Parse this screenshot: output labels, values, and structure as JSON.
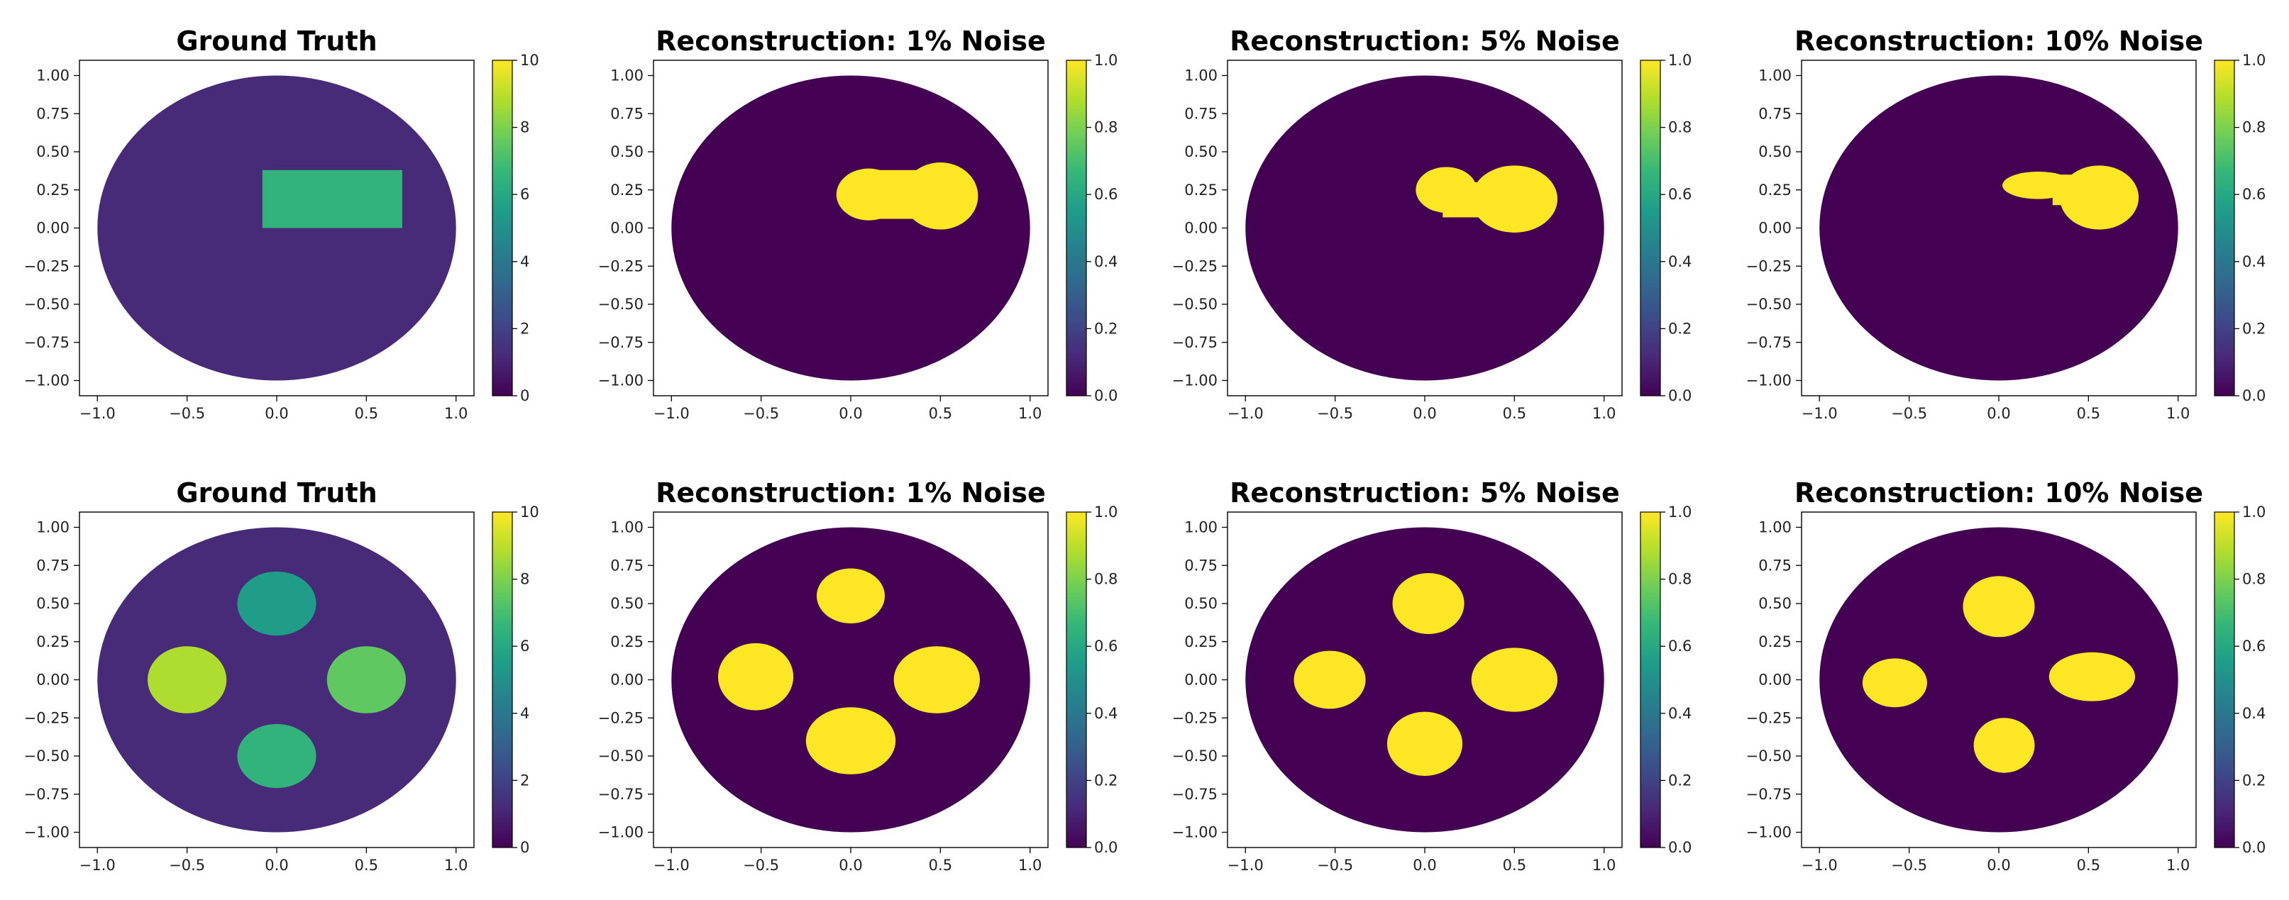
{
  "figure_title": "",
  "colors": {
    "viridis": [
      "#440154",
      "#482878",
      "#3e4989",
      "#31688e",
      "#26828e",
      "#1f9e89",
      "#35b779",
      "#6ece58",
      "#b5de2b",
      "#fde725"
    ],
    "axes_edge": "#000000",
    "background": "#ffffff"
  },
  "chart_data": [
    {
      "type": "heatmap",
      "id": "gt1",
      "title": "Ground Truth",
      "xlim": [
        -1.1,
        1.1
      ],
      "ylim": [
        -1.1,
        1.1
      ],
      "x_ticks": [
        -1.0,
        -0.5,
        0.0,
        0.5,
        1.0
      ],
      "x_tick_labels": [
        "−1.0",
        "−0.5",
        "0.0",
        "0.5",
        "1.0"
      ],
      "y_ticks": [
        1.0,
        0.75,
        0.5,
        0.25,
        0.0,
        -0.25,
        -0.5,
        -0.75,
        -1.0
      ],
      "y_tick_labels": [
        "1.00",
        "0.75",
        "0.50",
        "0.25",
        "0.00",
        "−0.25",
        "−0.50",
        "−0.75",
        "−1.00"
      ],
      "domain": {
        "shape": "disk",
        "cx": 0,
        "cy": 0,
        "r": 1.0,
        "value": 1.2
      },
      "inclusions": [
        {
          "shape": "rect",
          "x0": -0.08,
          "x1": 0.7,
          "y0": 0.0,
          "y1": 0.38,
          "value": 6.5
        }
      ],
      "colorbar": {
        "vmin": 0,
        "vmax": 10,
        "ticks": [
          0,
          2,
          4,
          6,
          8,
          10
        ],
        "tick_labels": [
          "0",
          "2",
          "4",
          "6",
          "8",
          "10"
        ]
      }
    },
    {
      "type": "heatmap",
      "id": "rec1_1",
      "title": "Reconstruction: 1% Noise",
      "xlim": [
        -1.1,
        1.1
      ],
      "ylim": [
        -1.1,
        1.1
      ],
      "x_ticks": [
        -1.0,
        -0.5,
        0.0,
        0.5,
        1.0
      ],
      "x_tick_labels": [
        "−1.0",
        "−0.5",
        "0.0",
        "0.5",
        "1.0"
      ],
      "y_ticks": [
        1.0,
        0.75,
        0.5,
        0.25,
        0.0,
        -0.25,
        -0.5,
        -0.75,
        -1.0
      ],
      "y_tick_labels": [
        "1.00",
        "0.75",
        "0.50",
        "0.25",
        "0.00",
        "−0.25",
        "−0.50",
        "−0.75",
        "−1.00"
      ],
      "domain": {
        "shape": "disk",
        "cx": 0,
        "cy": 0,
        "r": 1.0,
        "value": 0.0
      },
      "inclusions": [
        {
          "shape": "ellipse",
          "cx": 0.1,
          "cy": 0.22,
          "rx": 0.18,
          "ry": 0.17,
          "value": 1.0
        },
        {
          "shape": "ellipse",
          "cx": 0.5,
          "cy": 0.21,
          "rx": 0.21,
          "ry": 0.22,
          "value": 1.0
        },
        {
          "shape": "rect",
          "x0": 0.05,
          "x1": 0.5,
          "y0": 0.06,
          "y1": 0.38,
          "value": 1.0
        }
      ],
      "colorbar": {
        "vmin": 0,
        "vmax": 1,
        "ticks": [
          0,
          0.2,
          0.4,
          0.6,
          0.8,
          1.0
        ],
        "tick_labels": [
          "0.0",
          "0.2",
          "0.4",
          "0.6",
          "0.8",
          "1.0"
        ]
      }
    },
    {
      "type": "heatmap",
      "id": "rec1_5",
      "title": "Reconstruction: 5% Noise",
      "xlim": [
        -1.1,
        1.1
      ],
      "ylim": [
        -1.1,
        1.1
      ],
      "x_ticks": [
        -1.0,
        -0.5,
        0.0,
        0.5,
        1.0
      ],
      "x_tick_labels": [
        "−1.0",
        "−0.5",
        "0.0",
        "0.5",
        "1.0"
      ],
      "y_ticks": [
        1.0,
        0.75,
        0.5,
        0.25,
        0.0,
        -0.25,
        -0.5,
        -0.75,
        -1.0
      ],
      "y_tick_labels": [
        "1.00",
        "0.75",
        "0.50",
        "0.25",
        "0.00",
        "−0.25",
        "−0.50",
        "−0.75",
        "−1.00"
      ],
      "domain": {
        "shape": "disk",
        "cx": 0,
        "cy": 0,
        "r": 1.0,
        "value": 0.0
      },
      "inclusions": [
        {
          "shape": "ellipse",
          "cx": 0.12,
          "cy": 0.25,
          "rx": 0.17,
          "ry": 0.15,
          "value": 1.0
        },
        {
          "shape": "ellipse",
          "cx": 0.5,
          "cy": 0.19,
          "rx": 0.24,
          "ry": 0.22,
          "value": 1.0
        },
        {
          "shape": "rect",
          "x0": 0.1,
          "x1": 0.5,
          "y0": 0.07,
          "y1": 0.3,
          "value": 1.0
        }
      ],
      "colorbar": {
        "vmin": 0,
        "vmax": 1,
        "ticks": [
          0,
          0.2,
          0.4,
          0.6,
          0.8,
          1.0
        ],
        "tick_labels": [
          "0.0",
          "0.2",
          "0.4",
          "0.6",
          "0.8",
          "1.0"
        ]
      }
    },
    {
      "type": "heatmap",
      "id": "rec1_10",
      "title": "Reconstruction: 10% Noise",
      "xlim": [
        -1.1,
        1.1
      ],
      "ylim": [
        -1.1,
        1.1
      ],
      "x_ticks": [
        -1.0,
        -0.5,
        0.0,
        0.5,
        1.0
      ],
      "x_tick_labels": [
        "−1.0",
        "−0.5",
        "0.0",
        "0.5",
        "1.0"
      ],
      "y_ticks": [
        1.0,
        0.75,
        0.5,
        0.25,
        0.0,
        -0.25,
        -0.5,
        -0.75,
        -1.0
      ],
      "y_tick_labels": [
        "1.00",
        "0.75",
        "0.50",
        "0.25",
        "0.00",
        "−0.25",
        "−0.50",
        "−0.75",
        "−1.00"
      ],
      "domain": {
        "shape": "disk",
        "cx": 0,
        "cy": 0,
        "r": 1.0,
        "value": 0.0
      },
      "inclusions": [
        {
          "shape": "ellipse",
          "cx": 0.22,
          "cy": 0.28,
          "rx": 0.2,
          "ry": 0.09,
          "value": 1.0
        },
        {
          "shape": "ellipse",
          "cx": 0.56,
          "cy": 0.2,
          "rx": 0.22,
          "ry": 0.21,
          "value": 1.0
        },
        {
          "shape": "rect",
          "x0": 0.3,
          "x1": 0.56,
          "y0": 0.15,
          "y1": 0.35,
          "value": 1.0
        }
      ],
      "colorbar": {
        "vmin": 0,
        "vmax": 1,
        "ticks": [
          0,
          0.2,
          0.4,
          0.6,
          0.8,
          1.0
        ],
        "tick_labels": [
          "0.0",
          "0.2",
          "0.4",
          "0.6",
          "0.8",
          "1.0"
        ]
      }
    },
    {
      "type": "heatmap",
      "id": "gt2",
      "title": "Ground Truth",
      "xlim": [
        -1.1,
        1.1
      ],
      "ylim": [
        -1.1,
        1.1
      ],
      "x_ticks": [
        -1.0,
        -0.5,
        0.0,
        0.5,
        1.0
      ],
      "x_tick_labels": [
        "−1.0",
        "−0.5",
        "0.0",
        "0.5",
        "1.0"
      ],
      "y_ticks": [
        1.0,
        0.75,
        0.5,
        0.25,
        0.0,
        -0.25,
        -0.5,
        -0.75,
        -1.0
      ],
      "y_tick_labels": [
        "1.00",
        "0.75",
        "0.50",
        "0.25",
        "0.00",
        "−0.25",
        "−0.50",
        "−0.75",
        "−1.00"
      ],
      "domain": {
        "shape": "disk",
        "cx": 0,
        "cy": 0,
        "r": 1.0,
        "value": 1.2
      },
      "inclusions": [
        {
          "shape": "ellipse",
          "cx": 0.0,
          "cy": 0.5,
          "rx": 0.22,
          "ry": 0.21,
          "value": 5.5
        },
        {
          "shape": "ellipse",
          "cx": -0.5,
          "cy": 0.0,
          "rx": 0.22,
          "ry": 0.22,
          "value": 8.8
        },
        {
          "shape": "ellipse",
          "cx": 0.5,
          "cy": 0.0,
          "rx": 0.22,
          "ry": 0.22,
          "value": 7.5
        },
        {
          "shape": "ellipse",
          "cx": 0.0,
          "cy": -0.5,
          "rx": 0.22,
          "ry": 0.21,
          "value": 6.5
        }
      ],
      "colorbar": {
        "vmin": 0,
        "vmax": 10,
        "ticks": [
          0,
          2,
          4,
          6,
          8,
          10
        ],
        "tick_labels": [
          "0",
          "2",
          "4",
          "6",
          "8",
          "10"
        ]
      }
    },
    {
      "type": "heatmap",
      "id": "rec2_1",
      "title": "Reconstruction: 1% Noise",
      "xlim": [
        -1.1,
        1.1
      ],
      "ylim": [
        -1.1,
        1.1
      ],
      "x_ticks": [
        -1.0,
        -0.5,
        0.0,
        0.5,
        1.0
      ],
      "x_tick_labels": [
        "−1.0",
        "−0.5",
        "0.0",
        "0.5",
        "1.0"
      ],
      "y_ticks": [
        1.0,
        0.75,
        0.5,
        0.25,
        0.0,
        -0.25,
        -0.5,
        -0.75,
        -1.0
      ],
      "y_tick_labels": [
        "1.00",
        "0.75",
        "0.50",
        "0.25",
        "0.00",
        "−0.25",
        "−0.50",
        "−0.75",
        "−1.00"
      ],
      "domain": {
        "shape": "disk",
        "cx": 0,
        "cy": 0,
        "r": 1.0,
        "value": 0.0
      },
      "inclusions": [
        {
          "shape": "ellipse",
          "cx": 0.0,
          "cy": 0.55,
          "rx": 0.19,
          "ry": 0.18,
          "value": 1.0
        },
        {
          "shape": "ellipse",
          "cx": -0.53,
          "cy": 0.02,
          "rx": 0.21,
          "ry": 0.22,
          "value": 1.0
        },
        {
          "shape": "ellipse",
          "cx": 0.48,
          "cy": 0.0,
          "rx": 0.24,
          "ry": 0.22,
          "value": 1.0
        },
        {
          "shape": "ellipse",
          "cx": 0.0,
          "cy": -0.4,
          "rx": 0.25,
          "ry": 0.22,
          "value": 1.0
        }
      ],
      "colorbar": {
        "vmin": 0,
        "vmax": 1,
        "ticks": [
          0,
          0.2,
          0.4,
          0.6,
          0.8,
          1.0
        ],
        "tick_labels": [
          "0.0",
          "0.2",
          "0.4",
          "0.6",
          "0.8",
          "1.0"
        ]
      }
    },
    {
      "type": "heatmap",
      "id": "rec2_5",
      "title": "Reconstruction: 5% Noise",
      "xlim": [
        -1.1,
        1.1
      ],
      "ylim": [
        -1.1,
        1.1
      ],
      "x_ticks": [
        -1.0,
        -0.5,
        0.0,
        0.5,
        1.0
      ],
      "x_tick_labels": [
        "−1.0",
        "−0.5",
        "0.0",
        "0.5",
        "1.0"
      ],
      "y_ticks": [
        1.0,
        0.75,
        0.5,
        0.25,
        0.0,
        -0.25,
        -0.5,
        -0.75,
        -1.0
      ],
      "y_tick_labels": [
        "1.00",
        "0.75",
        "0.50",
        "0.25",
        "0.00",
        "−0.25",
        "−0.50",
        "−0.75",
        "−1.00"
      ],
      "domain": {
        "shape": "disk",
        "cx": 0,
        "cy": 0,
        "r": 1.0,
        "value": 0.0
      },
      "inclusions": [
        {
          "shape": "ellipse",
          "cx": 0.02,
          "cy": 0.5,
          "rx": 0.2,
          "ry": 0.2,
          "value": 1.0
        },
        {
          "shape": "ellipse",
          "cx": -0.53,
          "cy": 0.0,
          "rx": 0.2,
          "ry": 0.19,
          "value": 1.0
        },
        {
          "shape": "ellipse",
          "cx": 0.5,
          "cy": 0.0,
          "rx": 0.24,
          "ry": 0.21,
          "value": 1.0
        },
        {
          "shape": "ellipse",
          "cx": 0.0,
          "cy": -0.42,
          "rx": 0.21,
          "ry": 0.21,
          "value": 1.0
        }
      ],
      "colorbar": {
        "vmin": 0,
        "vmax": 1,
        "ticks": [
          0,
          0.2,
          0.4,
          0.6,
          0.8,
          1.0
        ],
        "tick_labels": [
          "0.0",
          "0.2",
          "0.4",
          "0.6",
          "0.8",
          "1.0"
        ]
      }
    },
    {
      "type": "heatmap",
      "id": "rec2_10",
      "title": "Reconstruction: 10% Noise",
      "xlim": [
        -1.1,
        1.1
      ],
      "ylim": [
        -1.1,
        1.1
      ],
      "x_ticks": [
        -1.0,
        -0.5,
        0.0,
        0.5,
        1.0
      ],
      "x_tick_labels": [
        "−1.0",
        "−0.5",
        "0.0",
        "0.5",
        "1.0"
      ],
      "y_ticks": [
        1.0,
        0.75,
        0.5,
        0.25,
        0.0,
        -0.25,
        -0.5,
        -0.75,
        -1.0
      ],
      "y_tick_labels": [
        "1.00",
        "0.75",
        "0.50",
        "0.25",
        "0.00",
        "−0.25",
        "−0.50",
        "−0.75",
        "−1.00"
      ],
      "domain": {
        "shape": "disk",
        "cx": 0,
        "cy": 0,
        "r": 1.0,
        "value": 0.0
      },
      "inclusions": [
        {
          "shape": "ellipse",
          "cx": 0.0,
          "cy": 0.48,
          "rx": 0.2,
          "ry": 0.2,
          "value": 1.0
        },
        {
          "shape": "ellipse",
          "cx": -0.58,
          "cy": -0.02,
          "rx": 0.18,
          "ry": 0.16,
          "value": 1.0
        },
        {
          "shape": "ellipse",
          "cx": 0.52,
          "cy": 0.02,
          "rx": 0.24,
          "ry": 0.16,
          "value": 1.0
        },
        {
          "shape": "ellipse",
          "cx": 0.03,
          "cy": -0.43,
          "rx": 0.17,
          "ry": 0.18,
          "value": 1.0
        }
      ],
      "colorbar": {
        "vmin": 0,
        "vmax": 1,
        "ticks": [
          0,
          0.2,
          0.4,
          0.6,
          0.8,
          1.0
        ],
        "tick_labels": [
          "0.0",
          "0.2",
          "0.4",
          "0.6",
          "0.8",
          "1.0"
        ]
      }
    }
  ]
}
